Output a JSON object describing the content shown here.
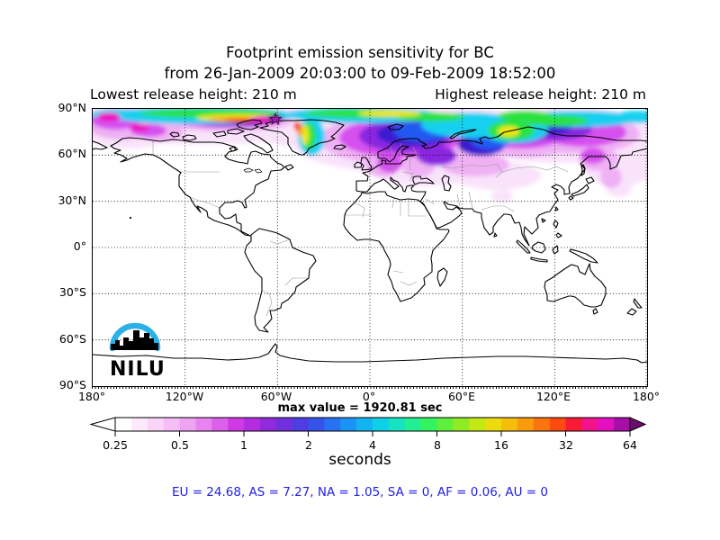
{
  "title": {
    "line1": "Footprint emission sensitivity for BC",
    "line2": "from 26-Jan-2009 20:03:00 to 09-Feb-2009 18:52:00",
    "line3_left": "Lowest release height: 210 m",
    "line3_right": "Highest release height: 210 m"
  },
  "map": {
    "yticks": [
      "90°N",
      "60°N",
      "30°N",
      "0°",
      "30°S",
      "60°S",
      "90°S"
    ],
    "xticks": [
      "180°",
      "120°W",
      "60°W",
      "0°",
      "60°E",
      "120°E",
      "180°"
    ],
    "max_value_label": "max value = 1920.81 sec",
    "logo_text": "NILU",
    "logo_arc_color": "#2bb1e8",
    "star_color": "#a21cb0",
    "star_edge_color": "#4d0a5e"
  },
  "colorbar": {
    "ticks": [
      "0.25",
      "0.5",
      "1",
      "2",
      "4",
      "8",
      "16",
      "32",
      "64"
    ],
    "unit_label": "seconds",
    "left_arrow_color": "#ffffff",
    "right_arrow_color": "#6e0b72",
    "cell_colors": [
      "#ffffff",
      "#fceafc",
      "#f9d5f9",
      "#f5bef7",
      "#efa3f3",
      "#e784ef",
      "#dd60ea",
      "#cf3ae5",
      "#b32de0",
      "#9129dd",
      "#7030dd",
      "#4f3ce2",
      "#3552ea",
      "#2672f2",
      "#1b93f5",
      "#12b4f2",
      "#0ed0e8",
      "#15e3c2",
      "#22ee92",
      "#33f35e",
      "#5ef03a",
      "#90ec22",
      "#c4e813",
      "#ecdc0d",
      "#f6bd0b",
      "#f99b0c",
      "#fb750e",
      "#fc4a11",
      "#f91a35",
      "#f2128c",
      "#e30fc0",
      "#a70da7"
    ]
  },
  "footer": {
    "text": "EU = 24.68,  AS = 7.27,  NA = 1.05,  SA = 0,  AF = 0.06,  AU = 0",
    "color": "#1f1fe8"
  },
  "chart_data": {
    "type": "heatmap",
    "subtype": "geographic filled-contour footprint plot, equirectangular world map",
    "title": "Footprint emission sensitivity for BC",
    "time_range": {
      "from": "26-Jan-2009 20:03:00",
      "to": "09-Feb-2009 18:52:00"
    },
    "lowest_release_height_m": 210,
    "highest_release_height_m": 210,
    "units": "seconds",
    "max_value_sec": 1920.81,
    "color_scale": {
      "type": "log2",
      "ticks": [
        0.25,
        0.5,
        1,
        2,
        4,
        8,
        16,
        32,
        64
      ],
      "low_color": "white",
      "high_color": "dark purple"
    },
    "region_totals": {
      "EU": 24.68,
      "AS": 7.27,
      "NA": 1.05,
      "SA": 0,
      "AF": 0.06,
      "AU": 0
    },
    "release_marker": {
      "symbol": "star",
      "approx_lon_deg": -62,
      "approx_lat_deg": 82.5
    },
    "map_extent": {
      "lon": [
        -180,
        180
      ],
      "lat": [
        -90,
        90
      ]
    },
    "grid": {
      "lon_step_deg": 60,
      "lat_step_deg": 30,
      "style": "dotted"
    },
    "plume_summary": "Highest sensitivity (8-64+ s: yellow/orange/red/magenta) in a band along 80-88N near the release star north of Ellesmere Island/Greenland, with a rainbow swirl east of Greenland; 2-8 s (cyan/green) band across the Arctic from 150W to 180E dipping to ~63N over western Siberia; 0.5-2 s (violet/purple/blue) over Scandinavia, northwest Russia and eastern Siberia; <0.5 s pale magenta wash over most areas north of ~55N including Bering/Chukchi region; near zero south of ~45N"
  }
}
